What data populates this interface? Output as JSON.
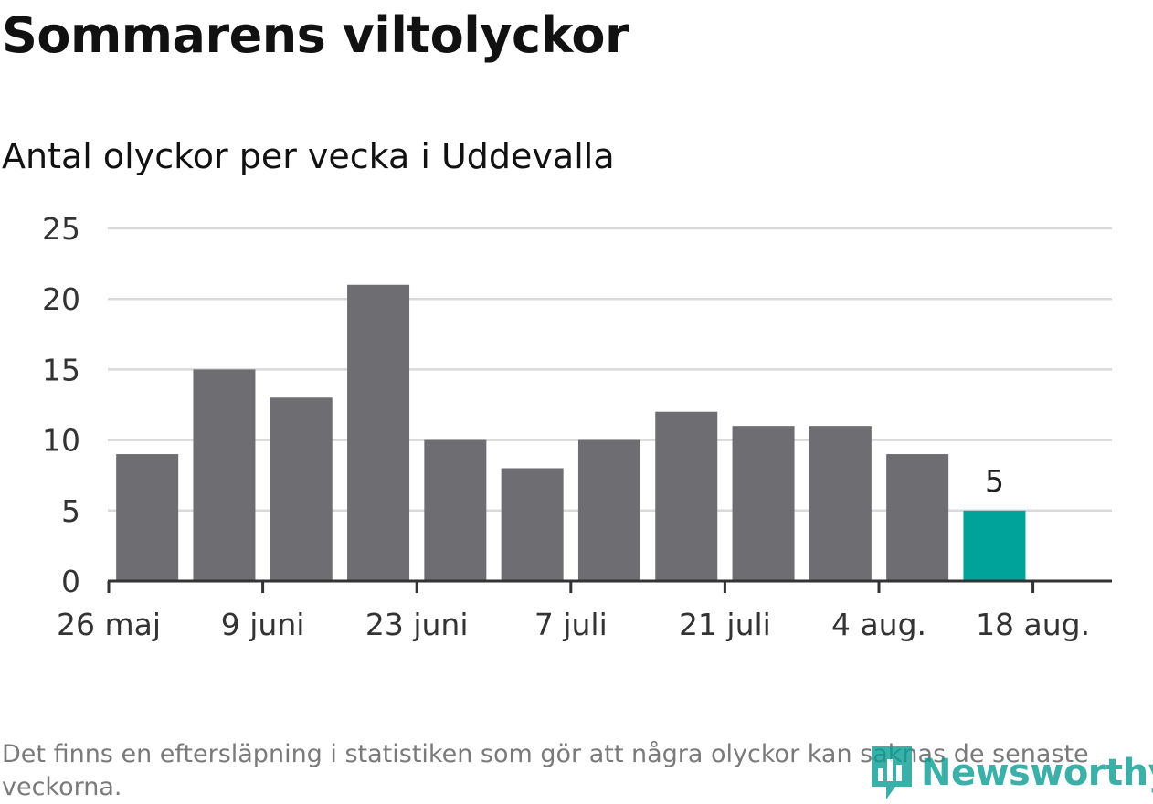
{
  "header": {
    "title": "Sommarens viltolyckor",
    "subtitle": "Antal olyckor per vecka i Uddevalla"
  },
  "footer": {
    "note": "Det finns en eftersläpning i statistiken som gör att några olyckor kan saknas de senaste veckorna.",
    "brand": "Newsworthy"
  },
  "colors": {
    "bar": "#6e6d72",
    "highlight": "#00a39a",
    "grid": "#d9d9d9",
    "axis": "#333333",
    "brand": "#0a9d93"
  },
  "chart_data": {
    "type": "bar",
    "title": "Sommarens viltolyckor",
    "subtitle": "Antal olyckor per vecka i Uddevalla",
    "xlabel": "",
    "ylabel": "",
    "x": [
      "2019-06-02",
      "2019-06-09",
      "2019-06-16",
      "2019-06-23",
      "2019-06-30",
      "2019-07-07",
      "2019-07-14",
      "2019-07-21",
      "2019-07-28",
      "2019-08-04",
      "2019-08-11",
      "2019-08-18"
    ],
    "values": [
      9,
      15,
      13,
      21,
      10,
      8,
      10,
      12,
      11,
      11,
      9,
      5
    ],
    "highlight": "2019-08-18",
    "highlight_label": "5",
    "ylim": [
      0,
      25
    ],
    "yticks": [
      0,
      5,
      10,
      15,
      20,
      25
    ],
    "xticks": [
      "26 maj",
      "9 juni",
      "23 juni",
      "7 juli",
      "21 juli",
      "4 aug.",
      "18 aug."
    ],
    "grid": true,
    "legend": "none"
  }
}
